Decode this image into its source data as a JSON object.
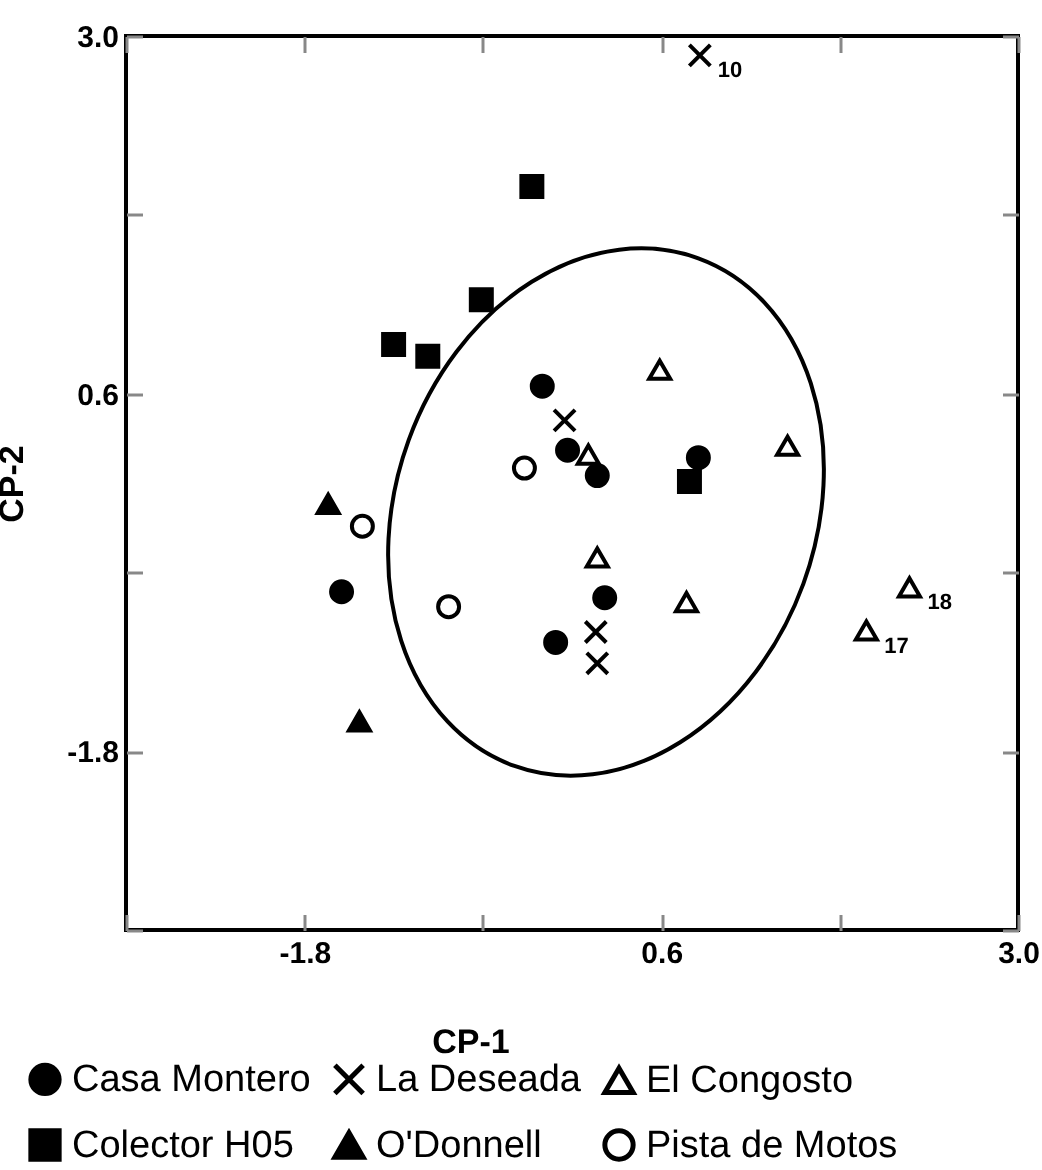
{
  "chart_data": {
    "type": "scatter",
    "xlabel": "CP-1",
    "ylabel": "CP-2",
    "xlim": [
      -3.0,
      3.0
    ],
    "xticks": [
      {
        "value": -3.0,
        "label": null
      },
      "-1.8",
      {
        "value": -0.6,
        "label": null
      },
      {
        "value": 0.6,
        "label": "0.6"
      },
      {
        "value": 1.8,
        "label": null
      },
      {
        "value": 3.0,
        "label": "3.0"
      }
    ],
    "ylim": [
      -3.0,
      3.0
    ],
    "yticks": [
      {
        "value": -3.0,
        "label": null
      },
      {
        "value": -1.8,
        "label": "-1.8"
      },
      {
        "value": -0.6,
        "label": null
      },
      {
        "value": 0.6,
        "label": "0.6"
      },
      {
        "value": 1.8,
        "label": null
      },
      {
        "value": 3.0,
        "label": "3.0"
      }
    ],
    "grid": false,
    "legend": "bottom",
    "series": [
      {
        "name": "Casa Montero",
        "color": "#000000",
        "marker": "circle",
        "x": [
          -0.2,
          -0.03,
          0.17,
          0.85,
          -1.55,
          0.22,
          -0.11
        ],
        "values": [
          0.65,
          0.22,
          0.05,
          0.17,
          -0.73,
          -0.77,
          -1.07
        ]
      },
      {
        "name": "La Deseada",
        "color": "#000000",
        "marker": "cross",
        "x": [
          0.86,
          -0.05,
          0.16,
          0.17
        ],
        "values": [
          2.87,
          0.42,
          -1.0,
          -1.21
        ]
      },
      {
        "name": "El Congosto",
        "color": "#ffffff",
        "marker": "triangle",
        "x": [
          0.59,
          0.11,
          1.45,
          0.17,
          0.77,
          1.98,
          2.27
        ],
        "values": [
          0.76,
          0.19,
          0.25,
          -0.5,
          -0.8,
          -0.99,
          -0.7
        ]
      },
      {
        "name": "Colector H05",
        "color": "#000000",
        "marker": "square",
        "x": [
          -0.27,
          -0.61,
          -1.2,
          -0.97,
          0.79
        ],
        "values": [
          1.99,
          1.23,
          0.93,
          0.85,
          0.01
        ]
      },
      {
        "name": "O'Donnell",
        "color": "#000000",
        "marker": "triangle",
        "x": [
          -1.64,
          -1.43
        ],
        "values": [
          -0.14,
          -1.6
        ]
      },
      {
        "name": "Pista de Motos",
        "color": "#ffffff",
        "marker": "circle",
        "x": [
          -0.32,
          -1.41,
          -0.83
        ],
        "values": [
          0.1,
          -0.29,
          -0.83
        ]
      }
    ],
    "annotations": [
      {
        "text": "10",
        "x": 0.86,
        "y": 2.87
      },
      {
        "text": "17",
        "x": 1.98,
        "y": -0.99
      },
      {
        "text": "18",
        "x": 2.27,
        "y": -0.7
      }
    ]
  }
}
